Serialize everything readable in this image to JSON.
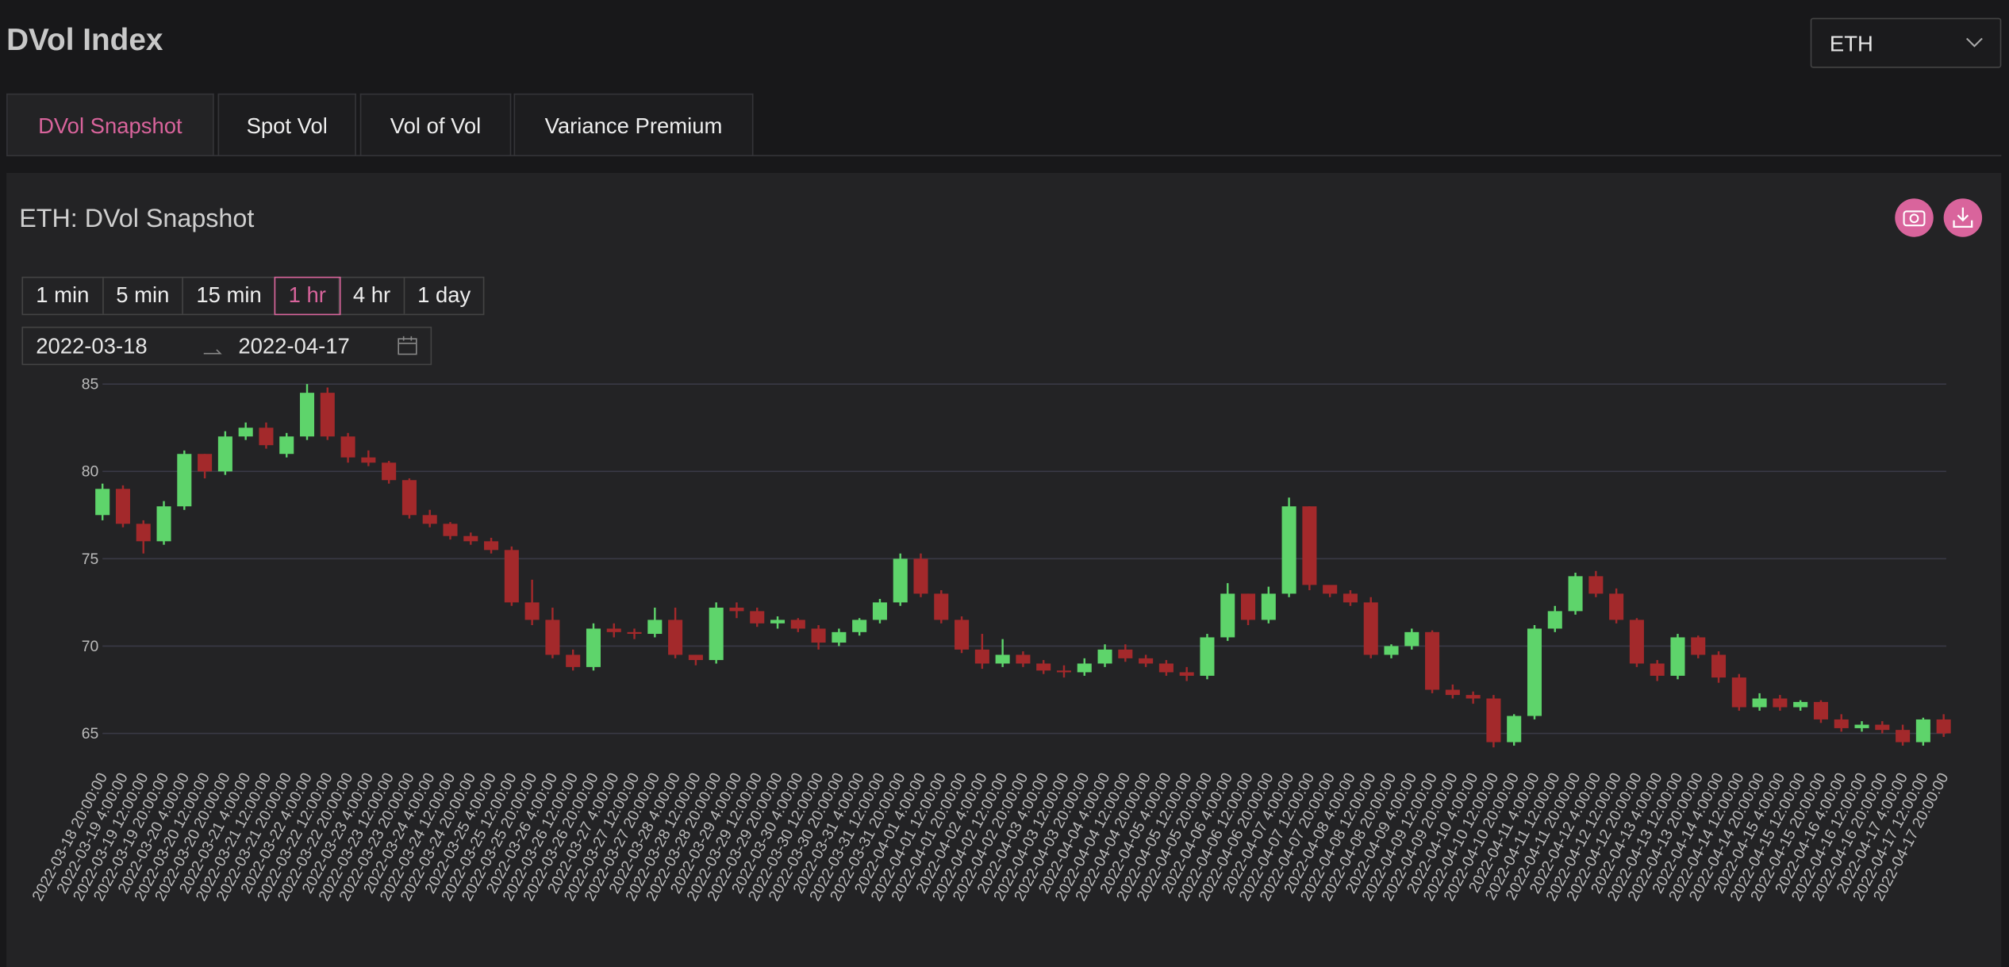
{
  "ui": {
    "page_title": "DVol Index",
    "asset_select": "ETH",
    "tabs": [
      "DVol Snapshot",
      "Spot Vol",
      "Vol of Vol",
      "Variance Premium"
    ],
    "active_tab": 0,
    "intervals": [
      "1 min",
      "5 min",
      "15 min",
      "1 hr",
      "4 hr",
      "1 day"
    ],
    "active_interval": 3,
    "date_from": "2022-03-18",
    "date_to": "2022-04-17"
  },
  "chart_data": {
    "type": "candlestick",
    "title": "ETH: DVol Snapshot",
    "up_color": "#5ed46b",
    "down_color": "#a3292b",
    "grid": true,
    "ylim": [
      63.5,
      85.5
    ],
    "yticks": [
      65,
      70,
      75,
      80,
      85
    ],
    "categories": [
      "2022-03-18 20:00:00",
      "2022-03-19 4:00:00",
      "2022-03-19 12:00:00",
      "2022-03-19 20:00:00",
      "2022-03-20 4:00:00",
      "2022-03-20 12:00:00",
      "2022-03-20 20:00:00",
      "2022-03-21 4:00:00",
      "2022-03-21 12:00:00",
      "2022-03-21 20:00:00",
      "2022-03-22 4:00:00",
      "2022-03-22 12:00:00",
      "2022-03-22 20:00:00",
      "2022-03-23 4:00:00",
      "2022-03-23 12:00:00",
      "2022-03-23 20:00:00",
      "2022-03-24 4:00:00",
      "2022-03-24 12:00:00",
      "2022-03-24 20:00:00",
      "2022-03-25 4:00:00",
      "2022-03-25 12:00:00",
      "2022-03-25 20:00:00",
      "2022-03-26 4:00:00",
      "2022-03-26 12:00:00",
      "2022-03-26 20:00:00",
      "2022-03-27 4:00:00",
      "2022-03-27 12:00:00",
      "2022-03-27 20:00:00",
      "2022-03-28 4:00:00",
      "2022-03-28 12:00:00",
      "2022-03-28 20:00:00",
      "2022-03-29 4:00:00",
      "2022-03-29 12:00:00",
      "2022-03-29 20:00:00",
      "2022-03-30 4:00:00",
      "2022-03-30 12:00:00",
      "2022-03-30 20:00:00",
      "2022-03-31 4:00:00",
      "2022-03-31 12:00:00",
      "2022-03-31 20:00:00",
      "2022-04-01 4:00:00",
      "2022-04-01 12:00:00",
      "2022-04-01 20:00:00",
      "2022-04-02 4:00:00",
      "2022-04-02 12:00:00",
      "2022-04-02 20:00:00",
      "2022-04-03 4:00:00",
      "2022-04-03 12:00:00",
      "2022-04-03 20:00:00",
      "2022-04-04 4:00:00",
      "2022-04-04 12:00:00",
      "2022-04-04 20:00:00",
      "2022-04-05 4:00:00",
      "2022-04-05 12:00:00",
      "2022-04-05 20:00:00",
      "2022-04-06 4:00:00",
      "2022-04-06 12:00:00",
      "2022-04-06 20:00:00",
      "2022-04-07 4:00:00",
      "2022-04-07 12:00:00",
      "2022-04-07 20:00:00",
      "2022-04-08 4:00:00",
      "2022-04-08 12:00:00",
      "2022-04-08 20:00:00",
      "2022-04-09 4:00:00",
      "2022-04-09 12:00:00",
      "2022-04-09 20:00:00",
      "2022-04-10 4:00:00",
      "2022-04-10 12:00:00",
      "2022-04-10 20:00:00",
      "2022-04-11 4:00:00",
      "2022-04-11 12:00:00",
      "2022-04-11 20:00:00",
      "2022-04-12 4:00:00",
      "2022-04-12 12:00:00",
      "2022-04-12 20:00:00",
      "2022-04-13 4:00:00",
      "2022-04-13 12:00:00",
      "2022-04-13 20:00:00",
      "2022-04-14 4:00:00",
      "2022-04-14 12:00:00",
      "2022-04-14 20:00:00",
      "2022-04-15 4:00:00",
      "2022-04-15 12:00:00",
      "2022-04-15 20:00:00",
      "2022-04-16 4:00:00",
      "2022-04-16 12:00:00",
      "2022-04-16 20:00:00",
      "2022-04-17 4:00:00",
      "2022-04-17 12:00:00",
      "2022-04-17 20:00:00"
    ],
    "open": [
      77.5,
      79,
      77,
      76,
      78,
      81,
      80,
      82,
      82.5,
      81,
      82,
      84.5,
      82,
      80.8,
      80.5,
      79.5,
      77.5,
      77,
      76.3,
      76,
      75.5,
      72.5,
      71.5,
      69.5,
      68.8,
      71,
      70.8,
      70.7,
      71.5,
      69.5,
      69.2,
      72.2,
      72,
      71.3,
      71.5,
      71,
      70.2,
      70.8,
      71.5,
      72.5,
      75,
      73,
      71.5,
      69.8,
      69,
      69.5,
      69,
      68.6,
      68.5,
      69,
      69.8,
      69.3,
      69,
      68.5,
      68.3,
      70.5,
      73,
      71.5,
      73,
      78,
      73.5,
      73,
      72.5,
      69.5,
      70,
      70.8,
      67.5,
      67.2,
      67,
      64.5,
      66,
      71,
      72,
      74,
      73,
      71.5,
      69,
      68.3,
      70.5,
      69.5,
      68.2,
      66.5,
      67,
      66.5,
      66.8,
      65.8,
      65.3,
      65.5,
      65.2,
      64.5,
      65.8
    ],
    "high": [
      79.3,
      79.2,
      77.2,
      78.3,
      81.2,
      81,
      82.3,
      82.8,
      82.8,
      82.2,
      85,
      84.8,
      82.2,
      81.2,
      80.6,
      79.6,
      77.8,
      77.1,
      76.5,
      76.2,
      75.7,
      73.8,
      72.2,
      69.8,
      71.3,
      71.3,
      71,
      72.2,
      72.2,
      69.5,
      72.5,
      72.5,
      72.2,
      71.7,
      71.6,
      71.2,
      71,
      71.6,
      72.7,
      75.3,
      75.3,
      73.2,
      71.7,
      70.7,
      70.4,
      69.7,
      69.2,
      68.9,
      69.3,
      70.1,
      70.1,
      69.5,
      69.2,
      68.8,
      70.7,
      73.6,
      73,
      73.4,
      78.5,
      78,
      73.3,
      73.2,
      72.8,
      70.1,
      71,
      70.9,
      67.8,
      67.4,
      67.2,
      66.1,
      71.2,
      72.3,
      74.2,
      74.3,
      73.3,
      71.6,
      69.2,
      70.7,
      70.6,
      69.7,
      68.4,
      67.3,
      67.2,
      66.9,
      66.9,
      66.1,
      65.7,
      65.7,
      65.5,
      65.9,
      66.1
    ],
    "low": [
      77.2,
      76.8,
      75.3,
      75.8,
      77.8,
      79.6,
      79.8,
      81.8,
      81.3,
      80.8,
      81.8,
      81.8,
      80.5,
      80.3,
      79.3,
      77.3,
      76.8,
      76.1,
      75.8,
      75.3,
      72.3,
      71.2,
      69.3,
      68.6,
      68.6,
      70.5,
      70.4,
      70.5,
      69.3,
      68.9,
      69,
      71.6,
      71.1,
      71,
      70.8,
      69.8,
      70,
      70.6,
      71.3,
      72.3,
      72.8,
      71.3,
      69.6,
      68.7,
      68.8,
      68.8,
      68.4,
      68.2,
      68.3,
      68.8,
      69.1,
      68.8,
      68.3,
      68,
      68.1,
      70.3,
      71.2,
      71.3,
      72.8,
      73.2,
      72.8,
      72.3,
      69.3,
      69.3,
      69.8,
      67.3,
      67,
      66.7,
      64.2,
      64.3,
      65.8,
      70.8,
      71.8,
      72.8,
      71.3,
      68.8,
      68,
      68.1,
      69.3,
      67.9,
      66.3,
      66.3,
      66.3,
      66.3,
      65.6,
      65.1,
      65.1,
      65,
      64.3,
      64.3,
      64.8
    ],
    "close": [
      79,
      77,
      76,
      78,
      81,
      80,
      82,
      82.5,
      81.5,
      82,
      84.5,
      82,
      80.8,
      80.5,
      79.5,
      77.5,
      77,
      76.3,
      76,
      75.5,
      72.5,
      71.5,
      69.5,
      68.8,
      71,
      70.8,
      70.7,
      71.5,
      69.5,
      69.2,
      72.2,
      72,
      71.3,
      71.5,
      71,
      70.2,
      70.8,
      71.5,
      72.5,
      75,
      73,
      71.5,
      69.8,
      69,
      69.5,
      69,
      68.6,
      68.5,
      69,
      69.8,
      69.3,
      69,
      68.5,
      68.3,
      70.5,
      73,
      71.5,
      73,
      78,
      73.5,
      73,
      72.5,
      69.5,
      70,
      70.8,
      67.5,
      67.2,
      67,
      64.5,
      66,
      71,
      72,
      74,
      73,
      71.5,
      69,
      68.3,
      70.5,
      69.5,
      68.2,
      66.5,
      67,
      66.5,
      66.8,
      65.8,
      65.3,
      65.5,
      65.2,
      64.5,
      65.8,
      65
    ]
  }
}
